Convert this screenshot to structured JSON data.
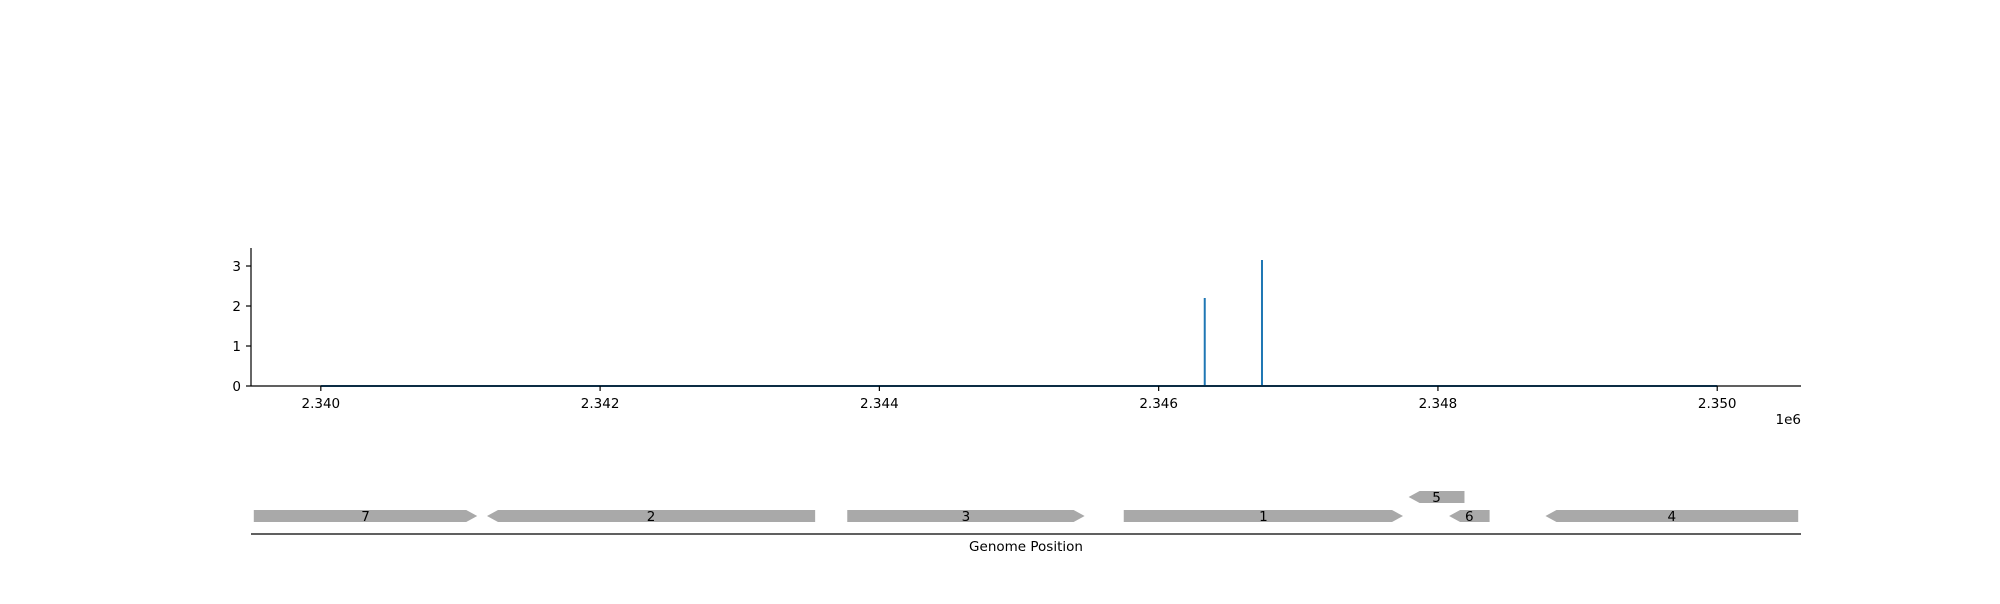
{
  "chart_data": [
    {
      "type": "line",
      "title": "",
      "xlabel": "",
      "ylabel": "",
      "x_offset_label": "1e6",
      "xlim": [
        2.3395,
        2.3506
      ],
      "ylim": [
        0,
        3.45
      ],
      "x_ticks": [
        2.34,
        2.342,
        2.344,
        2.346,
        2.348,
        2.35
      ],
      "x_tick_labels": [
        "2.340",
        "2.342",
        "2.344",
        "2.346",
        "2.348",
        "2.350"
      ],
      "y_ticks": [
        0,
        1,
        2,
        3
      ],
      "y_tick_labels": [
        "0",
        "1",
        "2",
        "3"
      ],
      "grid": false,
      "color": "#1f77b4",
      "baseline": {
        "x": [
          2.34,
          2.35
        ],
        "y": 0
      },
      "spikes": [
        {
          "x": 2.34633,
          "y": 2.2
        },
        {
          "x": 2.34674,
          "y": 3.15
        }
      ]
    },
    {
      "type": "gene-track",
      "xlabel": "Genome Position",
      "xlim": [
        2.3395,
        2.3506
      ],
      "color": "#a9a9a9",
      "genes": [
        {
          "label": "7",
          "start": 2.33952,
          "end": 2.34112,
          "strand": "+",
          "row": 0
        },
        {
          "label": "2",
          "start": 2.34119,
          "end": 2.34354,
          "strand": "-",
          "row": 0
        },
        {
          "label": "3",
          "start": 2.34377,
          "end": 2.34547,
          "strand": "+",
          "row": 0
        },
        {
          "label": "1",
          "start": 2.34575,
          "end": 2.34775,
          "strand": "+",
          "row": 0
        },
        {
          "label": "5",
          "start": 2.34779,
          "end": 2.34819,
          "strand": "-",
          "row": 1
        },
        {
          "label": "6",
          "start": 2.34808,
          "end": 2.34837,
          "strand": "-",
          "row": 0
        },
        {
          "label": "4",
          "start": 2.34877,
          "end": 2.35058,
          "strand": "-",
          "row": 0
        }
      ]
    }
  ]
}
